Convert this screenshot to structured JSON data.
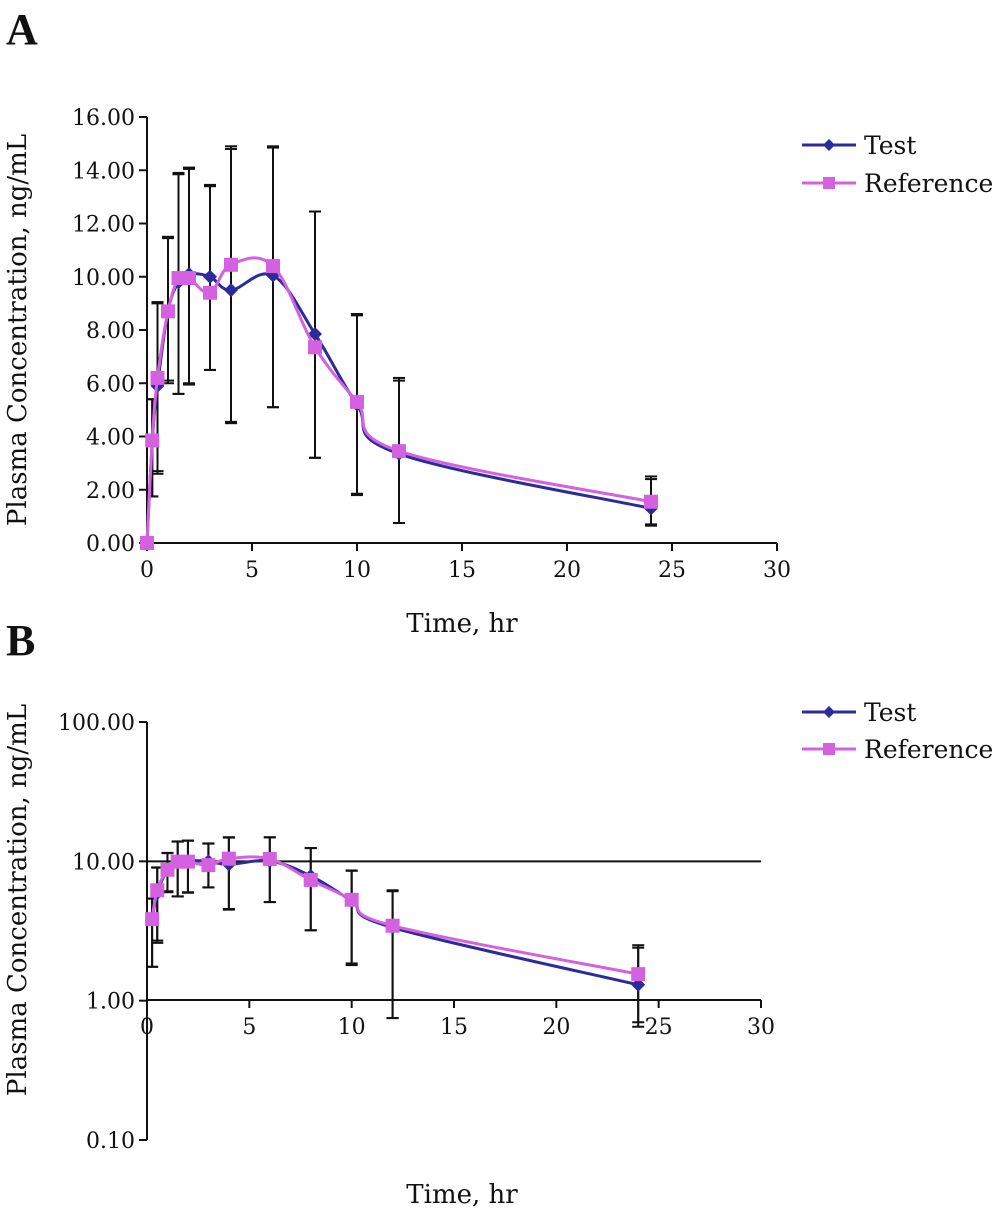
{
  "colors": {
    "test": "#2b2b9c",
    "reference": "#d462e0",
    "axis": "#111111",
    "error": "#111111"
  },
  "chart_data": [
    {
      "panel": "A",
      "type": "line",
      "yscale": "linear",
      "xlabel": "Time, hr",
      "ylabel": "Plasma Concentration, ng/mL",
      "xlim": [
        0,
        30
      ],
      "ylim": [
        0,
        16
      ],
      "xticks": [
        "0",
        "5",
        "10",
        "15",
        "20",
        "25",
        "30"
      ],
      "yticks": [
        "0.00",
        "2.00",
        "4.00",
        "6.00",
        "8.00",
        "10.00",
        "12.00",
        "14.00",
        "16.00"
      ],
      "legend_position": "top-right",
      "grid": false,
      "x": [
        0,
        0.25,
        0.5,
        1,
        1.5,
        2,
        3,
        4,
        6,
        8,
        10,
        12,
        24
      ],
      "series": [
        {
          "name": "Test",
          "marker": "diamond",
          "values": [
            0,
            3.8,
            5.9,
            8.7,
            9.8,
            10.1,
            10.0,
            9.5,
            10.05,
            7.85,
            5.2,
            3.35,
            1.3
          ],
          "error_upper": [
            0,
            5.4,
            9.0,
            11.5,
            13.9,
            14.1,
            13.4,
            14.8,
            14.85,
            12.45,
            8.6,
            6.1,
            2.4
          ],
          "error_lower": [
            0,
            1.75,
            2.6,
            6.1,
            5.6,
            6.0,
            6.5,
            4.5,
            5.1,
            3.2,
            1.8,
            0.75,
            0.65
          ]
        },
        {
          "name": "Reference",
          "marker": "square",
          "values": [
            0,
            3.85,
            6.2,
            8.7,
            9.95,
            9.95,
            9.4,
            10.45,
            10.4,
            7.35,
            5.3,
            3.45,
            1.55
          ],
          "error_upper": [
            0,
            5.4,
            9.05,
            11.45,
            13.85,
            14.05,
            13.45,
            14.9,
            14.9,
            12.45,
            8.55,
            6.2,
            2.5
          ],
          "error_lower": [
            0,
            1.75,
            2.7,
            6.0,
            5.6,
            5.95,
            6.5,
            4.55,
            5.1,
            3.2,
            1.85,
            0.75,
            0.7
          ]
        }
      ]
    },
    {
      "panel": "B",
      "type": "line",
      "yscale": "log",
      "xlabel": "Time, hr",
      "ylabel": "Plasma Concentration, ng/mL",
      "xlim": [
        0,
        30
      ],
      "ylim": [
        0.1,
        100
      ],
      "xticks": [
        "0",
        "5",
        "10",
        "15",
        "20",
        "25",
        "30"
      ],
      "yticks": [
        "0.10",
        "1.00",
        "10.00",
        "100.00"
      ],
      "legend_position": "top-right",
      "grid": false,
      "x": [
        0.25,
        0.5,
        1,
        1.5,
        2,
        3,
        4,
        6,
        8,
        10,
        12,
        24
      ],
      "series": [
        {
          "name": "Test",
          "marker": "diamond",
          "values": [
            3.8,
            5.9,
            8.7,
            9.8,
            10.1,
            10.0,
            9.5,
            10.05,
            7.85,
            5.2,
            3.35,
            1.3
          ],
          "error_upper": [
            5.4,
            9.0,
            11.5,
            13.9,
            14.1,
            13.4,
            14.8,
            14.85,
            12.45,
            8.6,
            6.1,
            2.4
          ],
          "error_lower": [
            1.75,
            2.6,
            6.1,
            5.6,
            6.0,
            6.5,
            4.5,
            5.1,
            3.2,
            1.8,
            0.75,
            0.65
          ]
        },
        {
          "name": "Reference",
          "marker": "square",
          "values": [
            3.85,
            6.2,
            8.7,
            9.95,
            9.95,
            9.4,
            10.45,
            10.4,
            7.35,
            5.3,
            3.45,
            1.55
          ],
          "error_upper": [
            5.4,
            9.05,
            11.45,
            13.85,
            14.05,
            13.45,
            14.9,
            14.9,
            12.45,
            8.55,
            6.2,
            2.5
          ],
          "error_lower": [
            1.75,
            2.7,
            6.0,
            5.6,
            5.95,
            6.5,
            4.55,
            5.1,
            3.2,
            1.85,
            0.75,
            0.7
          ]
        }
      ]
    }
  ]
}
